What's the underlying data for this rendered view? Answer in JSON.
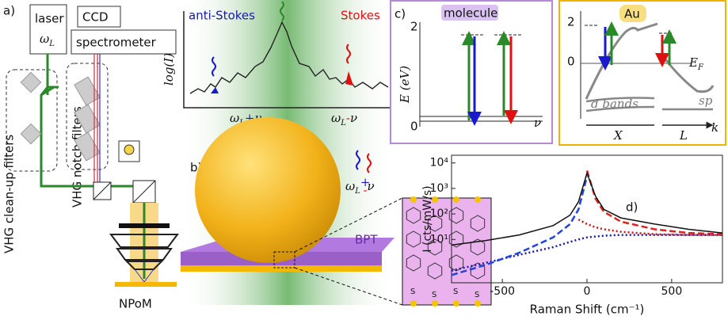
{
  "panel_a": {
    "label": "a)",
    "laser": "laser",
    "omega": "ω",
    "omega_sub": "L",
    "ccd": "CCD",
    "spectrometer": "spectrometer",
    "cleanup_filters": "VHG clean-up filters",
    "notch_filters": "VHG notch filters",
    "sample": "NPoM"
  },
  "panel_b": {
    "label": "b)",
    "anti_stokes": "anti-Stokes",
    "stokes": "Stokes",
    "y_axis": "log(I)",
    "anti_stokes_freq": {
      "omega": "ω",
      "sub": "L",
      "sign": "+",
      "nu": "ν"
    },
    "stokes_freq": {
      "omega": "ω",
      "sub": "L",
      "sign": "-",
      "nu": "ν"
    },
    "emission": {
      "omega": "ω",
      "sub": "L",
      "sign_up": "+",
      "sign_down": "-",
      "nu": "ν"
    },
    "molecule_layer": "BPT",
    "sulfur": "S"
  },
  "panel_c": {
    "label": "c)",
    "title": "molecule",
    "y_axis": "E (eV)",
    "ticks": [
      2,
      0
    ],
    "nu": "ν"
  },
  "panel_au": {
    "title": "Au",
    "ticks": [
      2,
      0
    ],
    "fermi": "E",
    "fermi_sub": "F",
    "sp": "sp",
    "d_bands": "d bands",
    "x_point": "X",
    "l_point": "L",
    "k": "k"
  },
  "panel_d": {
    "label": "d)"
  },
  "chart_data": {
    "type": "line",
    "xlabel": "Raman Shift (cm⁻¹)",
    "ylabel": "I (cts/mW/s)",
    "log_y": true,
    "x": [
      -800,
      -600,
      -400,
      -200,
      -100,
      -50,
      0,
      50,
      100,
      200,
      400,
      600,
      800
    ],
    "xlim": [
      -800,
      800
    ],
    "xticks": [
      -500,
      0,
      500
    ],
    "ylim": [
      0.2,
      20000
    ],
    "yticks": [
      {
        "value": 10,
        "label": "10¹"
      },
      {
        "value": 100,
        "label": "10²"
      },
      {
        "value": 1000,
        "label": "10³"
      },
      {
        "value": 10000,
        "label": "10⁴"
      }
    ],
    "series": [
      {
        "color": "#1a1aa8",
        "style": "dotted",
        "values": [
          0.6,
          1.2,
          2.5,
          5,
          8,
          10,
          12,
          13,
          14,
          15,
          15,
          15,
          15
        ]
      },
      {
        "color": "#cc1111",
        "style": "dotted",
        "values": [
          null,
          null,
          null,
          null,
          null,
          60,
          40,
          30,
          25,
          20,
          16,
          15,
          15
        ]
      },
      {
        "color": "#2244dd",
        "style": "dashed",
        "values": [
          0.4,
          1,
          3,
          12,
          40,
          150,
          3000,
          null,
          null,
          null,
          null,
          null,
          null
        ]
      },
      {
        "color": "#dd2222",
        "style": "dashed",
        "values": [
          null,
          null,
          null,
          null,
          null,
          null,
          5000,
          400,
          120,
          50,
          25,
          18,
          16
        ]
      },
      {
        "color": "#111111",
        "style": "solid",
        "values": [
          6,
          9,
          15,
          35,
          90,
          300,
          4000,
          500,
          150,
          70,
          40,
          25,
          18
        ]
      }
    ]
  }
}
